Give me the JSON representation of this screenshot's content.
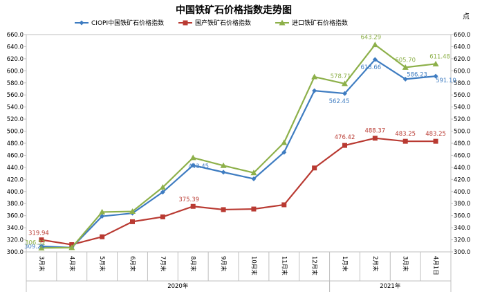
{
  "chart_data": {
    "type": "line",
    "title": "中国铁矿石价格指数走势图",
    "right_unit": "点",
    "categories": [
      "3月末",
      "4月末",
      "5月末",
      "6月末",
      "7月末",
      "8月末",
      "9月末",
      "10月末",
      "11月末",
      "12月末",
      "1月末",
      "2月末",
      "3月末",
      "4月1日"
    ],
    "years": [
      {
        "label": "2020年",
        "from": 0,
        "to": 9
      },
      {
        "label": "2021年",
        "from": 10,
        "to": 13
      }
    ],
    "ylim": [
      300,
      660
    ],
    "ytick_step": 20,
    "grid": false,
    "legend_position": "top",
    "series": [
      {
        "name": "CIOPI中国铁矿石价格指数",
        "color": "#3E7CC1",
        "marker": "diamond",
        "values": [
          309.24,
          307,
          359,
          364,
          399,
          443.45,
          432,
          421,
          465,
          567,
          562.45,
          618.66,
          586.23,
          591.1
        ],
        "labels": [
          {
            "i": 0,
            "text": "309.24"
          },
          {
            "i": 5,
            "text": "443.45"
          },
          {
            "i": 10,
            "text": "562.45"
          },
          {
            "i": 11,
            "text": "618.66"
          },
          {
            "i": 12,
            "text": "586.23"
          },
          {
            "i": 13,
            "text": "591.10"
          }
        ]
      },
      {
        "name": "国产铁矿石价格指数",
        "color": "#B93A32",
        "marker": "square",
        "values": [
          319.94,
          312,
          325,
          350,
          358,
          375.39,
          370,
          371,
          378,
          439,
          476.42,
          488.37,
          483.25,
          483.25
        ],
        "labels": [
          {
            "i": 0,
            "text": "319.94"
          },
          {
            "i": 5,
            "text": "375.39"
          },
          {
            "i": 10,
            "text": "476.42"
          },
          {
            "i": 11,
            "text": "488.37"
          },
          {
            "i": 12,
            "text": "483.25"
          },
          {
            "i": 13,
            "text": "483.25"
          }
        ]
      },
      {
        "name": "进口铁矿石价格指数",
        "color": "#8DB04A",
        "marker": "triangle",
        "values": [
          306.52,
          307,
          366,
          367,
          407,
          456,
          443,
          431,
          481,
          590,
          578.71,
          643.29,
          605.7,
          611.48
        ],
        "labels": [
          {
            "i": 0,
            "text": "306.52"
          },
          {
            "i": 10,
            "text": "578.71"
          },
          {
            "i": 11,
            "text": "643.29"
          },
          {
            "i": 12,
            "text": "605.70"
          },
          {
            "i": 13,
            "text": "611.48"
          }
        ]
      }
    ]
  }
}
